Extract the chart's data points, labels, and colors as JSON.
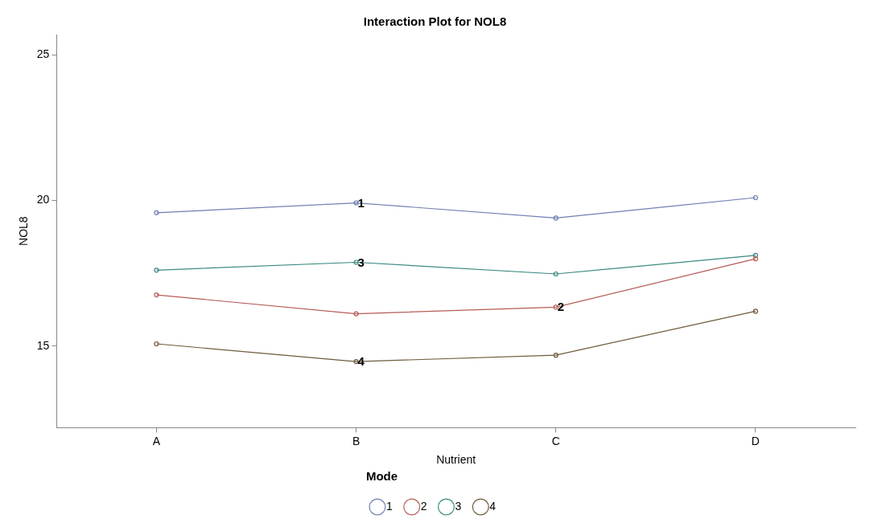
{
  "chart_data": {
    "type": "line",
    "title": "Interaction Plot for NOL8",
    "xlabel": "Nutrient",
    "ylabel": "NOL8",
    "legend_title": "Mode",
    "categories": [
      "A",
      "B",
      "C",
      "D"
    ],
    "series": [
      {
        "name": "1",
        "color": "#6f7eb3",
        "values": [
          19.58,
          19.92,
          19.4,
          20.1
        ]
      },
      {
        "name": "2",
        "color": "#b65c56",
        "values": [
          16.76,
          16.11,
          16.34,
          18.0
        ]
      },
      {
        "name": "3",
        "color": "#3c8a80",
        "values": [
          17.61,
          17.88,
          17.48,
          18.12
        ]
      },
      {
        "name": "4",
        "color": "#6e5a3a",
        "values": [
          15.08,
          14.47,
          14.69,
          16.2
        ]
      }
    ],
    "annotations": [
      {
        "text": "1",
        "x": "B",
        "y": 19.92
      },
      {
        "text": "3",
        "x": "B",
        "y": 17.88
      },
      {
        "text": "2",
        "x": "C",
        "y": 16.34
      },
      {
        "text": "4",
        "x": "B",
        "y": 14.47
      }
    ],
    "ylim": [
      12.2,
      25.7
    ],
    "yticks": [
      15,
      20,
      25
    ],
    "grid": false,
    "legend": "bottom",
    "marker": "circle",
    "line_style": "solid"
  }
}
